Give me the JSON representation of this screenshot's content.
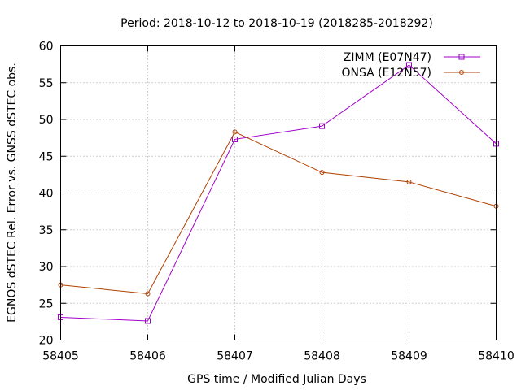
{
  "chart_data": {
    "type": "line",
    "title": "Period: 2018-10-12 to 2018-10-19 (2018285-2018292)",
    "xlabel": "GPS time / Modified Julian Days",
    "ylabel": "EGNOS dSTEC Rel. Error vs. GNSS dSTEC obs.",
    "xlim": [
      58405,
      58410
    ],
    "ylim": [
      20,
      60
    ],
    "xticks": [
      "58405",
      "58406",
      "58407",
      "58408",
      "58409",
      "58410"
    ],
    "yticks": [
      "20",
      "25",
      "30",
      "35",
      "40",
      "45",
      "50",
      "55",
      "60"
    ],
    "grid": true,
    "legend_position": "top-right",
    "x": [
      58405,
      58406,
      58407,
      58408,
      58409,
      58410
    ],
    "series": [
      {
        "name": "ZIMM (E07N47)",
        "color": "#a000c8",
        "marker": "square",
        "values": [
          23.1,
          22.6,
          47.3,
          49.1,
          57.4,
          46.7
        ]
      },
      {
        "name": "ONSA (E12N57)",
        "color": "#b04000",
        "marker": "circle",
        "values": [
          27.5,
          26.3,
          48.3,
          42.8,
          41.5,
          38.2
        ]
      }
    ]
  }
}
